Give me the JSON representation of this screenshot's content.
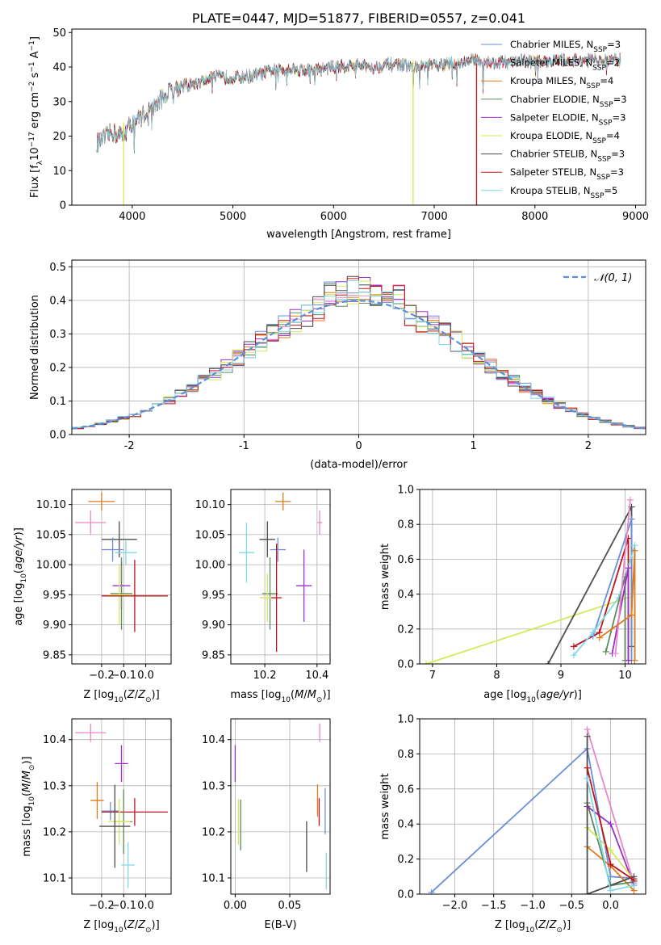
{
  "chart_data": [
    {
      "id": "spectrum",
      "type": "line",
      "title": "PLATE=0447, MJD=51877, FIBERID=0557, z=0.041",
      "xlabel": "wavelength [Angstrom, rest frame]",
      "ylabel": "Flux [f_λ10^-17 erg cm^-2 s^-1 A^-1]",
      "xlim": [
        3400,
        9100
      ],
      "ylim": [
        0,
        51
      ],
      "xticks": [
        4000,
        5000,
        6000,
        7000,
        8000,
        9000
      ],
      "yticks": [
        0,
        10,
        20,
        30,
        40,
        50
      ],
      "continuum": {
        "x": [
          3650,
          3700,
          3800,
          3900,
          4000,
          4100,
          4200,
          4300,
          4400,
          4600,
          4800,
          5000,
          5200,
          5400,
          5600,
          5800,
          6000,
          6200,
          6400,
          6600,
          6800,
          7000,
          7200,
          7400,
          7600,
          7800,
          8000,
          8200,
          8400,
          8600,
          8850
        ],
        "y": [
          18,
          19,
          21,
          20,
          24,
          26,
          28,
          31,
          34,
          35,
          37,
          37,
          37.5,
          39,
          39.5,
          39,
          40,
          40.5,
          40,
          41,
          40,
          40.5,
          41,
          42,
          41,
          42,
          41.5,
          42,
          42,
          42,
          42
        ]
      },
      "legend_placement": "upper right",
      "series": [
        {
          "name": "Chabrier MILES, N_SSP=3",
          "color": "#6a8fd8"
        },
        {
          "name": "Salpeter MILES, N_SSP=2",
          "color": "#e887c8"
        },
        {
          "name": "Kroupa MILES, N_SSP=4",
          "color": "#e07b1a"
        },
        {
          "name": "Chabrier ELODIE, N_SSP=3",
          "color": "#5e8a5e"
        },
        {
          "name": "Salpeter ELODIE, N_SSP=3",
          "color": "#9b30c8"
        },
        {
          "name": "Kroupa ELODIE, N_SSP=4",
          "color": "#d6e85a"
        },
        {
          "name": "Chabrier STELIB, N_SSP=3",
          "color": "#4d4d4d"
        },
        {
          "name": "Salpeter STELIB, N_SSP=3",
          "color": "#c0141b"
        },
        {
          "name": "Kroupa STELIB, N_SSP=5",
          "color": "#7fd8e8"
        }
      ]
    },
    {
      "id": "residuals",
      "type": "line",
      "title": "",
      "xlabel": "(data-model)/error",
      "ylabel": "Normed distribution",
      "xlim": [
        -2.5,
        2.5
      ],
      "ylim": [
        0,
        0.52
      ],
      "xticks": [
        -2,
        -1,
        0,
        1,
        2
      ],
      "yticks": [
        0.0,
        0.1,
        0.2,
        0.3,
        0.4,
        0.5
      ],
      "grid": true,
      "legend_placement": "upper right",
      "reference": {
        "name": "𝒩(0, 1)",
        "color": "#5b8fd8",
        "style": "dashed"
      },
      "histogram_bin_width": 0.1
    },
    {
      "id": "age-vs-Z",
      "type": "scatter",
      "xlabel": "Z [log10(Z/Z⊙)]",
      "ylabel": "age  [log10(age/yr)]",
      "xlim": [
        -0.335,
        0.115
      ],
      "ylim": [
        9.835,
        10.125
      ],
      "xticks": [
        -0.2,
        -0.1,
        0.0
      ],
      "xticklabels": [
        "−0.2",
        "−0.1",
        "0.0"
      ],
      "yticks": [
        9.85,
        9.9,
        9.95,
        10.0,
        10.05,
        10.1
      ],
      "grid": true,
      "points": [
        {
          "series": "Kroupa MILES",
          "x": -0.2,
          "y": 10.105,
          "xerr": 0.06,
          "yerr": 0.015
        },
        {
          "series": "Salpeter MILES",
          "x": -0.25,
          "y": 10.07,
          "xerr": 0.07,
          "yerr": 0.02
        },
        {
          "series": "Chabrier STELIB",
          "x": -0.12,
          "y": 10.042,
          "xerr": 0.08,
          "yerr": 0.03
        },
        {
          "series": "Chabrier MILES",
          "x": -0.15,
          "y": 10.025,
          "xerr": 0.05,
          "yerr": 0.02
        },
        {
          "series": "Kroupa STELIB",
          "x": -0.09,
          "y": 10.02,
          "xerr": 0.05,
          "yerr": 0.02
        },
        {
          "series": "Salpeter ELODIE",
          "x": -0.11,
          "y": 9.965,
          "xerr": 0.04,
          "yerr": 0.04
        },
        {
          "series": "Chabrier ELODIE",
          "x": -0.11,
          "y": 9.952,
          "xerr": 0.05,
          "yerr": 0.06
        },
        {
          "series": "Kroupa ELODIE",
          "x": -0.12,
          "y": 9.95,
          "xerr": 0.05,
          "yerr": 0.05
        },
        {
          "series": "Salpeter STELIB",
          "x": -0.05,
          "y": 9.948,
          "xerr": 0.15,
          "yerr": 0.06
        }
      ]
    },
    {
      "id": "age-vs-mass",
      "type": "scatter",
      "xlabel": "mass [log10(M/M⊙)]",
      "ylabel": "",
      "xlim": [
        10.07,
        10.45
      ],
      "ylim": [
        9.835,
        10.125
      ],
      "xticks": [
        10.2,
        10.4
      ],
      "yticks": [
        9.85,
        9.9,
        9.95,
        10.0,
        10.05,
        10.1
      ],
      "grid": true,
      "points": [
        {
          "series": "Kroupa MILES",
          "x": 10.27,
          "y": 10.105,
          "xerr": 0.03,
          "yerr": 0.015
        },
        {
          "series": "Salpeter MILES",
          "x": 10.41,
          "y": 10.07,
          "xerr": 0.01,
          "yerr": 0.02
        },
        {
          "series": "Chabrier STELIB",
          "x": 10.21,
          "y": 10.042,
          "xerr": 0.03,
          "yerr": 0.03
        },
        {
          "series": "Chabrier MILES",
          "x": 10.25,
          "y": 10.025,
          "xerr": 0.03,
          "yerr": 0.02
        },
        {
          "series": "Kroupa STELIB",
          "x": 10.13,
          "y": 10.02,
          "xerr": 0.03,
          "yerr": 0.05
        },
        {
          "series": "Salpeter ELODIE",
          "x": 10.35,
          "y": 9.965,
          "xerr": 0.03,
          "yerr": 0.06
        },
        {
          "series": "Chabrier ELODIE",
          "x": 10.22,
          "y": 9.952,
          "xerr": 0.03,
          "yerr": 0.06
        },
        {
          "series": "Kroupa ELODIE",
          "x": 10.21,
          "y": 9.945,
          "xerr": 0.03,
          "yerr": 0.04
        },
        {
          "series": "Salpeter STELIB",
          "x": 10.245,
          "y": 9.945,
          "xerr": 0.02,
          "yerr": 0.09
        }
      ]
    },
    {
      "id": "weight-vs-age",
      "type": "line",
      "xlabel": "age  [log10(age/yr)]",
      "ylabel": "mass weight",
      "xlim": [
        6.8,
        10.32
      ],
      "ylim": [
        0,
        1
      ],
      "xticks": [
        7,
        8,
        9,
        10
      ],
      "yticks": [
        0.0,
        0.2,
        0.4,
        0.6,
        0.8,
        1.0
      ],
      "grid": true,
      "series": [
        {
          "name": "Kroupa ELODIE",
          "x": [
            6.9,
            10.05,
            10.05
          ],
          "y": [
            0.0,
            0.38,
            0.55
          ]
        },
        {
          "name": "Chabrier STELIB",
          "x": [
            8.8,
            10.1,
            10.1
          ],
          "y": [
            0.0,
            0.9,
            0.1
          ]
        },
        {
          "name": "Salpeter STELIB",
          "x": [
            9.2,
            9.6,
            10.05,
            10.05
          ],
          "y": [
            0.1,
            0.18,
            0.72,
            0.02
          ]
        },
        {
          "name": "Chabrier MILES",
          "x": [
            9.5,
            10.1,
            10.1
          ],
          "y": [
            0.16,
            0.83,
            0.02
          ]
        },
        {
          "name": "Kroupa STELIB",
          "x": [
            9.2,
            9.5,
            9.9,
            10.15,
            10.15
          ],
          "y": [
            0.05,
            0.18,
            0.38,
            0.68,
            0.02
          ]
        },
        {
          "name": "Chabrier ELODIE",
          "x": [
            9.7,
            10.0,
            10.0
          ],
          "y": [
            0.07,
            0.5,
            0.02
          ]
        },
        {
          "name": "Salpeter ELODIE",
          "x": [
            9.8,
            10.05,
            10.05
          ],
          "y": [
            0.06,
            0.55,
            0.02
          ]
        },
        {
          "name": "Salpeter MILES",
          "x": [
            9.85,
            10.08
          ],
          "y": [
            0.06,
            0.94
          ]
        },
        {
          "name": "Kroupa MILES",
          "x": [
            9.6,
            10.1,
            10.15,
            10.15
          ],
          "y": [
            0.15,
            0.28,
            0.65,
            0.02
          ]
        }
      ]
    },
    {
      "id": "mass-vs-Z",
      "type": "scatter",
      "xlabel": "Z [log10(Z/Z⊙)]",
      "ylabel": "mass [log10(M/M⊙)]",
      "xlim": [
        -0.335,
        0.115
      ],
      "ylim": [
        10.065,
        10.445
      ],
      "xticks": [
        -0.2,
        -0.1,
        0.0
      ],
      "xticklabels": [
        "−0.2",
        "−0.1",
        "0.0"
      ],
      "yticks": [
        10.1,
        10.2,
        10.3,
        10.4
      ],
      "grid": true,
      "points": [
        {
          "series": "Salpeter MILES",
          "x": -0.25,
          "y": 10.415,
          "xerr": 0.07,
          "yerr": 0.02
        },
        {
          "series": "Salpeter ELODIE",
          "x": -0.11,
          "y": 10.348,
          "xerr": 0.03,
          "yerr": 0.04
        },
        {
          "series": "Kroupa MILES",
          "x": -0.22,
          "y": 10.268,
          "xerr": 0.03,
          "yerr": 0.04
        },
        {
          "series": "Chabrier MILES",
          "x": -0.16,
          "y": 10.245,
          "xerr": 0.04,
          "yerr": 0.02
        },
        {
          "series": "Salpeter STELIB",
          "x": -0.05,
          "y": 10.243,
          "xerr": 0.15,
          "yerr": 0.03
        },
        {
          "series": "Chabrier ELODIE",
          "x": -0.1,
          "y": 10.222,
          "xerr": 0.04,
          "yerr": 0.07
        },
        {
          "series": "Kroupa ELODIE",
          "x": -0.12,
          "y": 10.222,
          "xerr": 0.05,
          "yerr": 0.05
        },
        {
          "series": "Chabrier STELIB",
          "x": -0.14,
          "y": 10.212,
          "xerr": 0.07,
          "yerr": 0.09
        },
        {
          "series": "Kroupa STELIB",
          "x": -0.08,
          "y": 10.128,
          "xerr": 0.03,
          "yerr": 0.05
        }
      ]
    },
    {
      "id": "mass-vs-ebv",
      "type": "scatter",
      "xlabel": "E(B-V)",
      "ylabel": "",
      "xlim": [
        -0.004,
        0.087
      ],
      "ylim": [
        10.065,
        10.445
      ],
      "xticks": [
        0.0,
        0.05
      ],
      "xticklabels": [
        "0.00",
        "0.05"
      ],
      "yticks": [
        10.1,
        10.2,
        10.3,
        10.4
      ],
      "grid": true,
      "points": [
        {
          "series": "Salpeter MILES",
          "x": 0.0775,
          "y": 10.415,
          "yerr": 0.02
        },
        {
          "series": "Salpeter ELODIE",
          "x": 0.0,
          "y": 10.348,
          "yerr": 0.04
        },
        {
          "series": "Kroupa MILES",
          "x": 0.0755,
          "y": 10.268,
          "yerr": 0.035
        },
        {
          "series": "Chabrier MILES",
          "x": 0.0825,
          "y": 10.245,
          "yerr": 0.05
        },
        {
          "series": "Salpeter STELIB",
          "x": 0.077,
          "y": 10.243,
          "yerr": 0.03
        },
        {
          "series": "Kroupa ELODIE",
          "x": 0.003,
          "y": 10.222,
          "yerr": 0.05
        },
        {
          "series": "Chabrier ELODIE",
          "x": 0.005,
          "y": 10.215,
          "yerr": 0.055
        },
        {
          "series": "Chabrier STELIB",
          "x": 0.0655,
          "y": 10.168,
          "yerr": 0.055
        },
        {
          "series": "Kroupa STELIB",
          "x": 0.0835,
          "y": 10.115,
          "yerr": 0.04
        }
      ]
    },
    {
      "id": "weight-vs-Z",
      "type": "line",
      "xlabel": "Z [log10(Z/Z⊙)]",
      "ylabel": "mass weight",
      "xlim": [
        -2.45,
        0.45
      ],
      "ylim": [
        0,
        1
      ],
      "xticks": [
        -2.0,
        -1.5,
        -1.0,
        -0.5,
        0.0
      ],
      "xticklabels": [
        "−2.0",
        "−1.5",
        "−1.0",
        "−0.5",
        "0.0"
      ],
      "yticks": [
        0.0,
        0.2,
        0.4,
        0.6,
        0.8,
        1.0
      ],
      "grid": true,
      "series": [
        {
          "name": "Chabrier MILES",
          "x": [
            -2.3,
            -0.3,
            0.0,
            0.3
          ],
          "y": [
            0.01,
            0.83,
            0.1,
            0.09
          ]
        },
        {
          "name": "Salpeter MILES",
          "x": [
            -0.3,
            0.3
          ],
          "y": [
            0.94,
            0.06
          ]
        },
        {
          "name": "Kroupa MILES",
          "x": [
            -0.3,
            0.0,
            0.3
          ],
          "y": [
            0.27,
            0.16,
            0.02
          ]
        },
        {
          "name": "Chabrier ELODIE",
          "x": [
            -0.3,
            0.0,
            0.3
          ],
          "y": [
            0.52,
            0.05,
            0.07
          ]
        },
        {
          "name": "Salpeter ELODIE",
          "x": [
            -0.3,
            0.0,
            0.3
          ],
          "y": [
            0.5,
            0.4,
            0.05
          ]
        },
        {
          "name": "Kroupa ELODIE",
          "x": [
            -0.3,
            0.0,
            0.3
          ],
          "y": [
            0.38,
            0.25,
            0.08
          ]
        },
        {
          "name": "Chabrier STELIB",
          "x": [
            -0.3,
            -0.3,
            0.3
          ],
          "y": [
            0.9,
            0.0,
            0.1
          ]
        },
        {
          "name": "Salpeter STELIB",
          "x": [
            -0.3,
            0.0,
            0.3
          ],
          "y": [
            0.72,
            0.17,
            0.08
          ]
        },
        {
          "name": "Kroupa STELIB",
          "x": [
            -0.3,
            0.0,
            0.3
          ],
          "y": [
            0.66,
            0.02,
            0.05
          ]
        }
      ]
    }
  ]
}
